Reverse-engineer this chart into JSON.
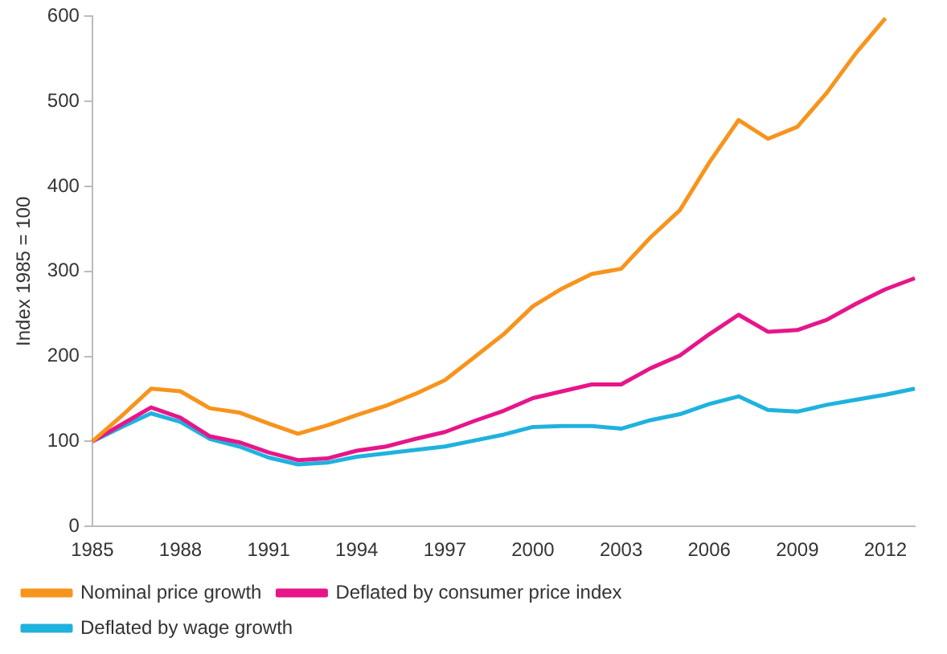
{
  "chart_data": {
    "type": "line",
    "ylabel": "Index 1985 = 100",
    "categories": [
      "1985",
      null,
      null,
      "1988",
      null,
      null,
      "1991",
      null,
      null,
      "1994",
      null,
      null,
      "1997",
      null,
      null,
      "2000",
      null,
      null,
      "2003",
      null,
      null,
      "2006",
      null,
      null,
      "2009",
      null,
      null,
      "2012",
      null
    ],
    "series": [
      {
        "name": "Nominal price growth",
        "color": "#f7941d",
        "values": [
          100,
          130,
          162,
          159,
          139,
          134,
          121,
          109,
          119,
          131,
          142,
          156,
          172,
          199,
          226,
          259,
          280,
          297,
          303,
          340,
          372,
          428,
          478,
          456,
          470,
          510,
          557,
          598,
          null
        ]
      },
      {
        "name": "Deflated by consumer price index",
        "color": "#e6168a",
        "values": [
          100,
          120,
          140,
          128,
          106,
          99,
          87,
          78,
          80,
          89,
          94,
          103,
          111,
          124,
          136,
          151,
          159,
          167,
          167,
          186,
          201,
          226,
          249,
          229,
          231,
          243,
          262,
          279,
          292
        ]
      },
      {
        "name": "Deflated by wage growth",
        "color": "#1fb2de",
        "values": [
          100,
          117,
          133,
          123,
          103,
          94,
          81,
          73,
          75,
          82,
          86,
          90,
          94,
          101,
          108,
          117,
          118,
          118,
          115,
          125,
          132,
          144,
          153,
          137,
          135,
          143,
          149,
          155,
          162
        ]
      }
    ],
    "ylim": [
      0,
      600
    ],
    "yticks": [
      0,
      100,
      200,
      300,
      400,
      500,
      600
    ],
    "grid": false,
    "legend": "bottom",
    "marker": "none",
    "line_style": "solid"
  }
}
